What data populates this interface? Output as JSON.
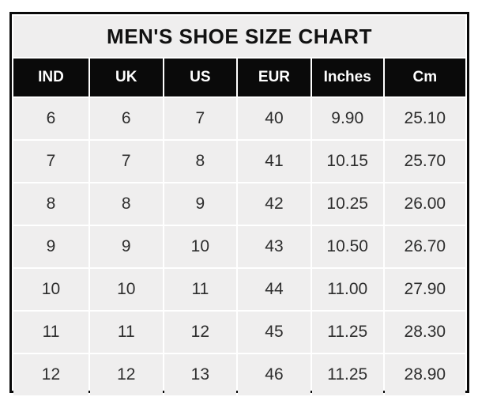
{
  "chart_data": {
    "type": "table",
    "title": "MEN'S SHOE SIZE CHART",
    "columns": [
      "IND",
      "UK",
      "US",
      "EUR",
      "Inches",
      "Cm"
    ],
    "rows": [
      [
        "6",
        "6",
        "7",
        "40",
        "9.90",
        "25.10"
      ],
      [
        "7",
        "7",
        "8",
        "41",
        "10.15",
        "25.70"
      ],
      [
        "8",
        "8",
        "9",
        "42",
        "10.25",
        "26.00"
      ],
      [
        "9",
        "9",
        "10",
        "43",
        "10.50",
        "26.70"
      ],
      [
        "10",
        "10",
        "11",
        "44",
        "11.00",
        "27.90"
      ],
      [
        "11",
        "11",
        "12",
        "45",
        "11.25",
        "28.30"
      ],
      [
        "12",
        "12",
        "13",
        "46",
        "11.25",
        "28.90"
      ]
    ]
  },
  "colors": {
    "outer_border": "#0a0a0a",
    "header_bg": "#0a0a0a",
    "header_text": "#ffffff",
    "cell_bg": "#efeeee",
    "cell_text": "#2d2d2d",
    "grid_gap": "#ffffff",
    "page_bg": "#ffffff"
  }
}
